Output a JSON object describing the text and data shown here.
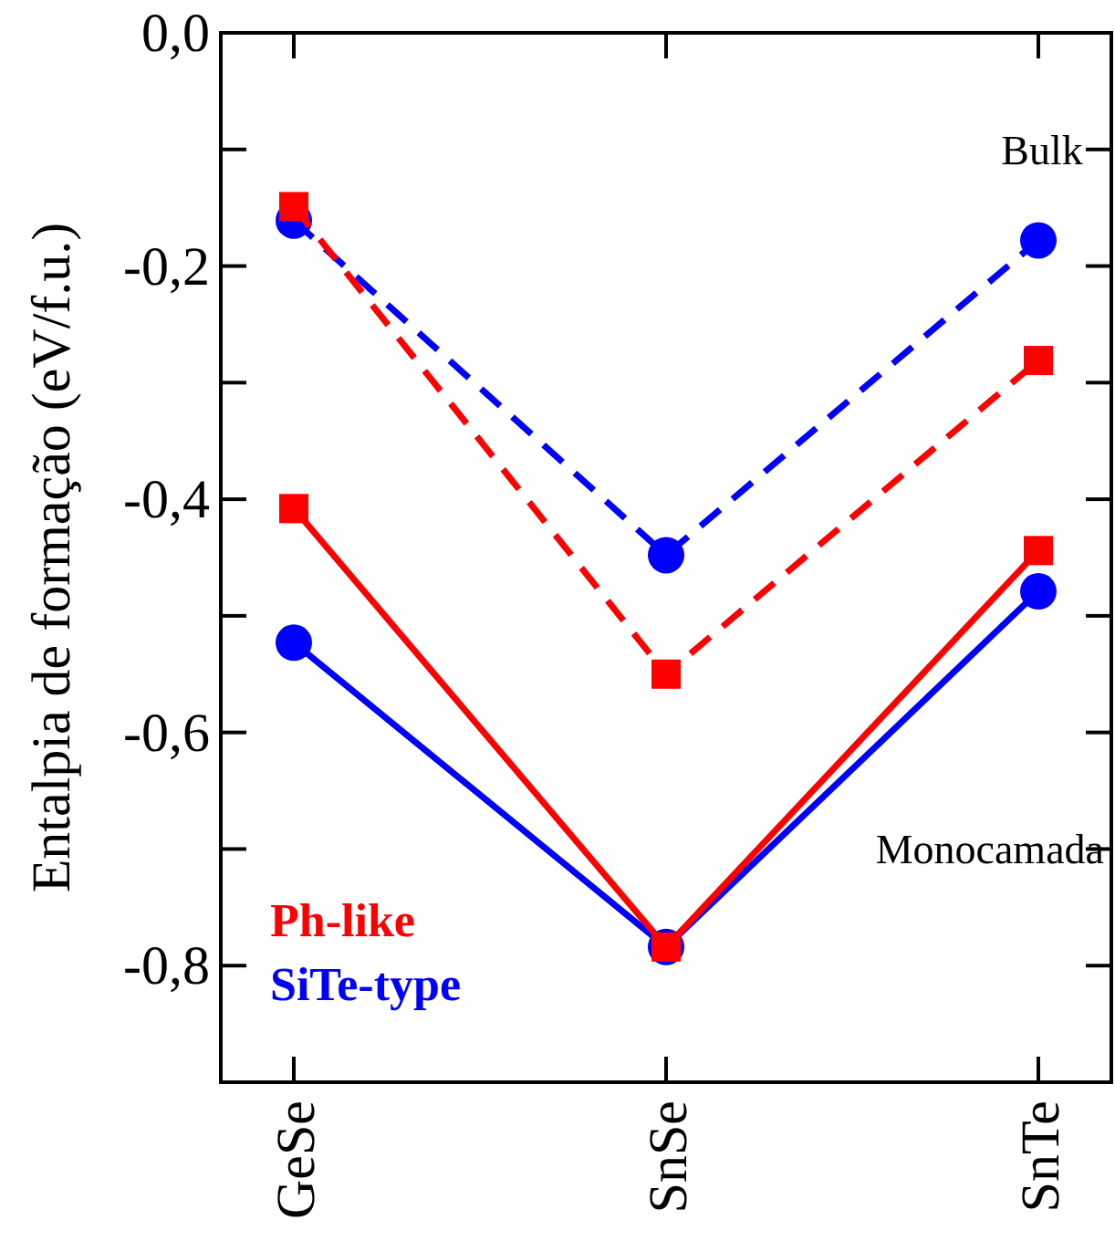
{
  "chart_data": {
    "type": "line",
    "ylabel": "Entalpia de formação (eV/f.u.)",
    "categories": [
      "GeSe",
      "SnSe",
      "SnTe"
    ],
    "series": [
      {
        "color": "#ff0000",
        "values": [
          -0.149,
          -0.55,
          -0.281
        ],
        "marker": "square",
        "line_style": "dashed"
      },
      {
        "color": "#0000ff",
        "values": [
          -0.161,
          -0.448,
          -0.178
        ],
        "marker": "circle",
        "line_style": "dashed"
      },
      {
        "name": "Ph-like",
        "color": "#ff0000",
        "values": [
          -0.408,
          -0.784,
          -0.444
        ],
        "marker": "square",
        "line_style": "solid"
      },
      {
        "name": "SiTe-type",
        "color": "#0000ff",
        "values": [
          -0.523,
          -0.784,
          -0.479
        ],
        "marker": "circle",
        "line_style": "solid"
      }
    ],
    "ylim": [
      -0.9,
      0
    ],
    "yticks": [
      {
        "value": 0,
        "label": "0,0"
      },
      {
        "value": -0.1,
        "label": null
      },
      {
        "value": -0.2,
        "label": "-0,2"
      },
      {
        "value": -0.3,
        "label": null
      },
      {
        "value": -0.4,
        "label": "-0,4"
      },
      {
        "value": -0.5,
        "label": null
      },
      {
        "value": -0.6,
        "label": "-0,6"
      },
      {
        "value": -0.7,
        "label": null
      },
      {
        "value": -0.8,
        "label": "-0,8"
      }
    ],
    "annotations": [
      "Bulk",
      "Monocamada"
    ],
    "legend": "bottom left",
    "grid": false
  }
}
